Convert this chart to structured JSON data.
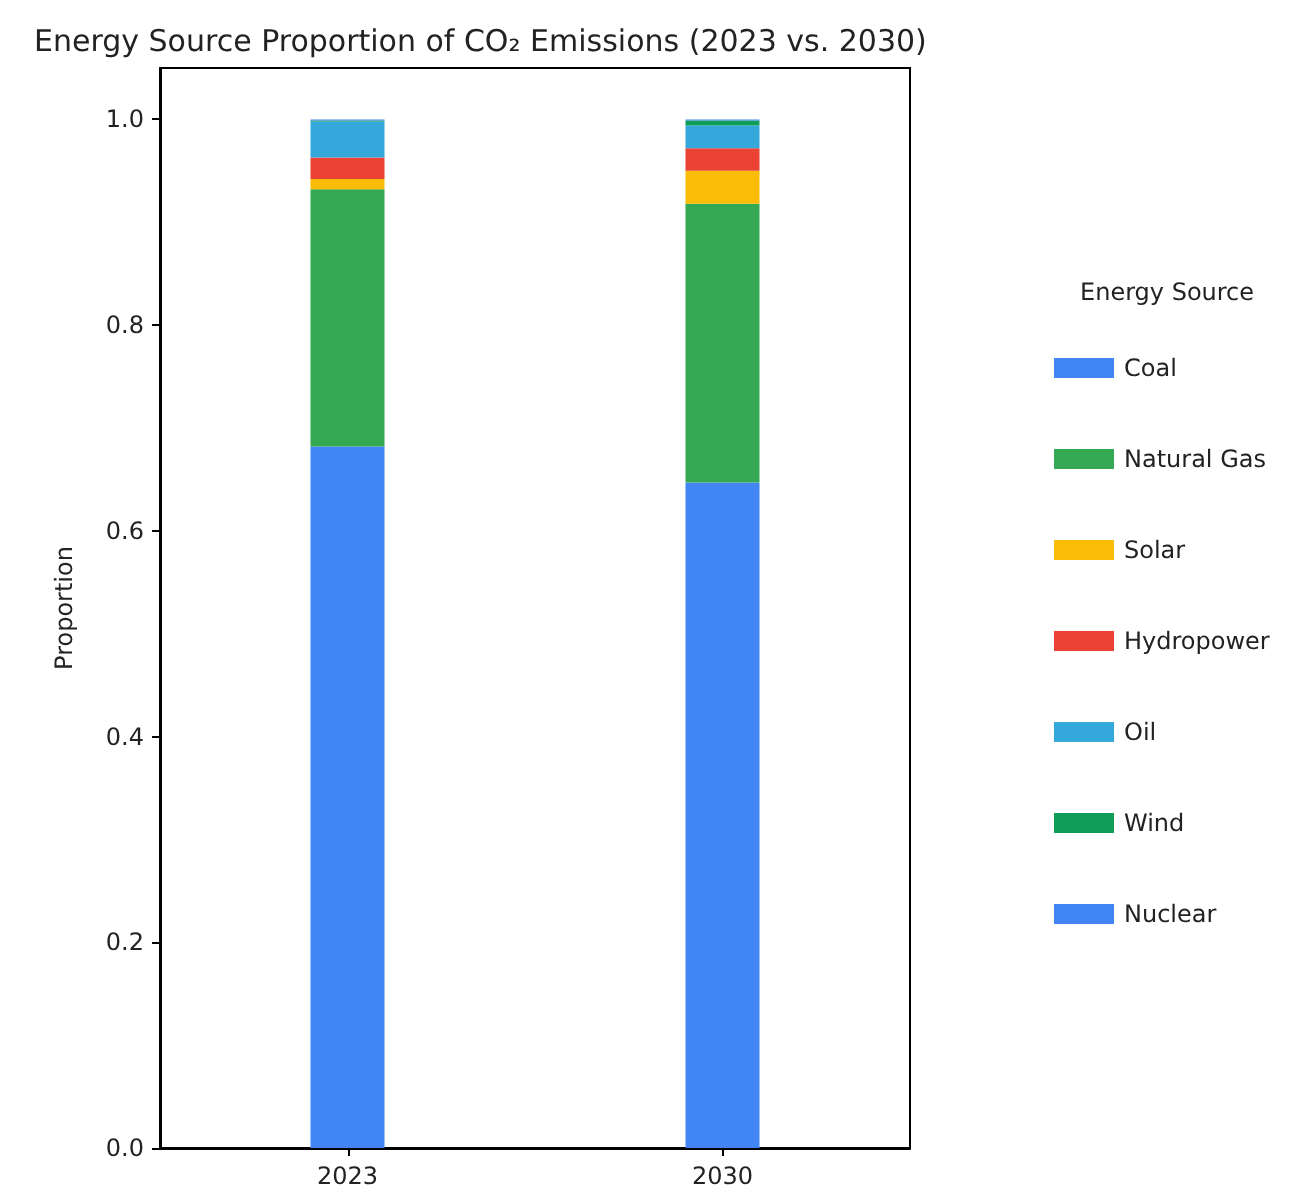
{
  "chart_data": {
    "type": "bar",
    "stacked": true,
    "title": "Energy Source Proportion of CO₂ Emissions (2023 vs. 2030)",
    "ylabel": "Proportion",
    "legend_title": "Energy Source",
    "legend": "right",
    "categories": [
      "2023",
      "2030"
    ],
    "series": [
      {
        "name": "Coal",
        "color": "#4285f4",
        "values": [
          0.682,
          0.647
        ]
      },
      {
        "name": "Natural Gas",
        "color": "#34a853",
        "values": [
          0.25,
          0.271
        ]
      },
      {
        "name": "Solar",
        "color": "#fbbc05",
        "values": [
          0.01,
          0.032
        ]
      },
      {
        "name": "Hydropower",
        "color": "#ea4335",
        "values": [
          0.021,
          0.022
        ]
      },
      {
        "name": "Oil",
        "color": "#34a8db",
        "values": [
          0.035,
          0.022
        ]
      },
      {
        "name": "Wind",
        "color": "#0f9d58",
        "values": [
          0.001,
          0.005
        ]
      },
      {
        "name": "Nuclear",
        "color": "#4285f4",
        "values": [
          0.001,
          0.001
        ]
      }
    ],
    "ylim": [
      0,
      1.05
    ],
    "yticks": [
      {
        "value": 0,
        "label": "0.0"
      },
      {
        "value": 0.2,
        "label": "0.2"
      },
      {
        "value": 0.4,
        "label": "0.4"
      },
      {
        "value": 0.6,
        "label": "0.6"
      },
      {
        "value": 0.8,
        "label": "0.8"
      },
      {
        "value": 1,
        "label": "1.0"
      }
    ],
    "grid": false
  }
}
